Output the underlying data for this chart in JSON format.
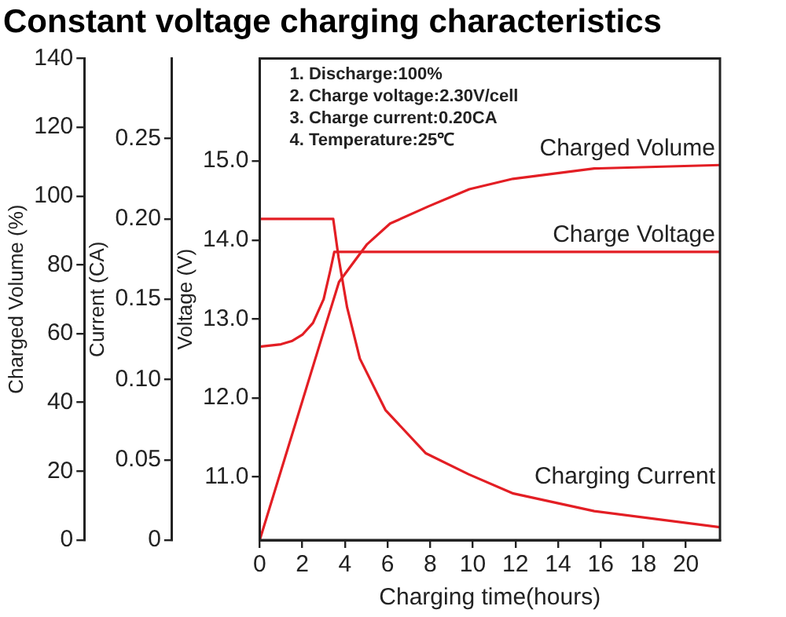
{
  "chart_data": {
    "type": "line",
    "title": "Constant voltage charging characteristics",
    "xlabel": "Charging time(hours)",
    "ylabel": "Voltage (V)",
    "y2label": "Current (CA)",
    "y3label": "Charged Volume (%)",
    "xlim": [
      0,
      21.6
    ],
    "xticks": [
      0,
      2,
      4,
      6,
      8,
      10,
      12,
      14,
      16,
      18,
      20
    ],
    "y3lim": [
      0,
      140
    ],
    "y3ticks": [
      {
        "value": 0,
        "label": "0"
      },
      {
        "value": 20,
        "label": "20"
      },
      {
        "value": 40,
        "label": "40"
      },
      {
        "value": 60,
        "label": "60"
      },
      {
        "value": 80,
        "label": "80"
      },
      {
        "value": 100,
        "label": "100"
      },
      {
        "value": 120,
        "label": "120"
      },
      {
        "value": 140,
        "label": "140"
      }
    ],
    "y2lim": [
      0,
      0.3
    ],
    "y2ticks": [
      {
        "value": 0,
        "label": "0"
      },
      {
        "value": 0.05,
        "label": "0.05"
      },
      {
        "value": 0.1,
        "label": "0.10"
      },
      {
        "value": 0.15,
        "label": "0.15"
      },
      {
        "value": 0.2,
        "label": "0.20"
      },
      {
        "value": 0.25,
        "label": "0.25"
      }
    ],
    "ylim": [
      10.2,
      16.3
    ],
    "yticks": [
      {
        "value": 11,
        "label": "11.0"
      },
      {
        "value": 12,
        "label": "12.0"
      },
      {
        "value": 13,
        "label": "13.0"
      },
      {
        "value": 14,
        "label": "14.0"
      },
      {
        "value": 15,
        "label": "15.0"
      }
    ],
    "annotations": [
      "1. Discharge:100%",
      "2. Charge voltage:2.30V/cell",
      "3. Charge current:0.20CA",
      "4. Temperature:25℃"
    ],
    "legend": false,
    "grid": false,
    "marker": "none",
    "line_style": "solid",
    "series": [
      {
        "name": "Charged Volume",
        "color": "#e31e24",
        "axis": "y3",
        "x": [
          0,
          3.12,
          3.72,
          5.04,
          6.12,
          7.92,
          9.84,
          11.88,
          15.7,
          21.6
        ],
        "values": [
          0,
          63,
          75,
          86,
          92,
          97,
          102,
          105,
          108,
          109
        ]
      },
      {
        "name": "Charge Voltage",
        "color": "#e31e24",
        "x": [
          0,
          1,
          1.5,
          2,
          2.5,
          3,
          3.3,
          3.5,
          21.6
        ],
        "values": [
          12.65,
          12.68,
          12.72,
          12.8,
          12.95,
          13.25,
          13.6,
          13.85,
          13.85
        ]
      },
      {
        "name": "Charging Current",
        "color": "#e31e24",
        "axis": "y2",
        "x": [
          0,
          3.45,
          3.7,
          4.1,
          4.7,
          5.9,
          7.8,
          9.8,
          11.9,
          15.7,
          21.6
        ],
        "values": [
          0.2,
          0.2,
          0.176,
          0.145,
          0.113,
          0.081,
          0.054,
          0.041,
          0.029,
          0.018,
          0.008
        ]
      }
    ]
  }
}
